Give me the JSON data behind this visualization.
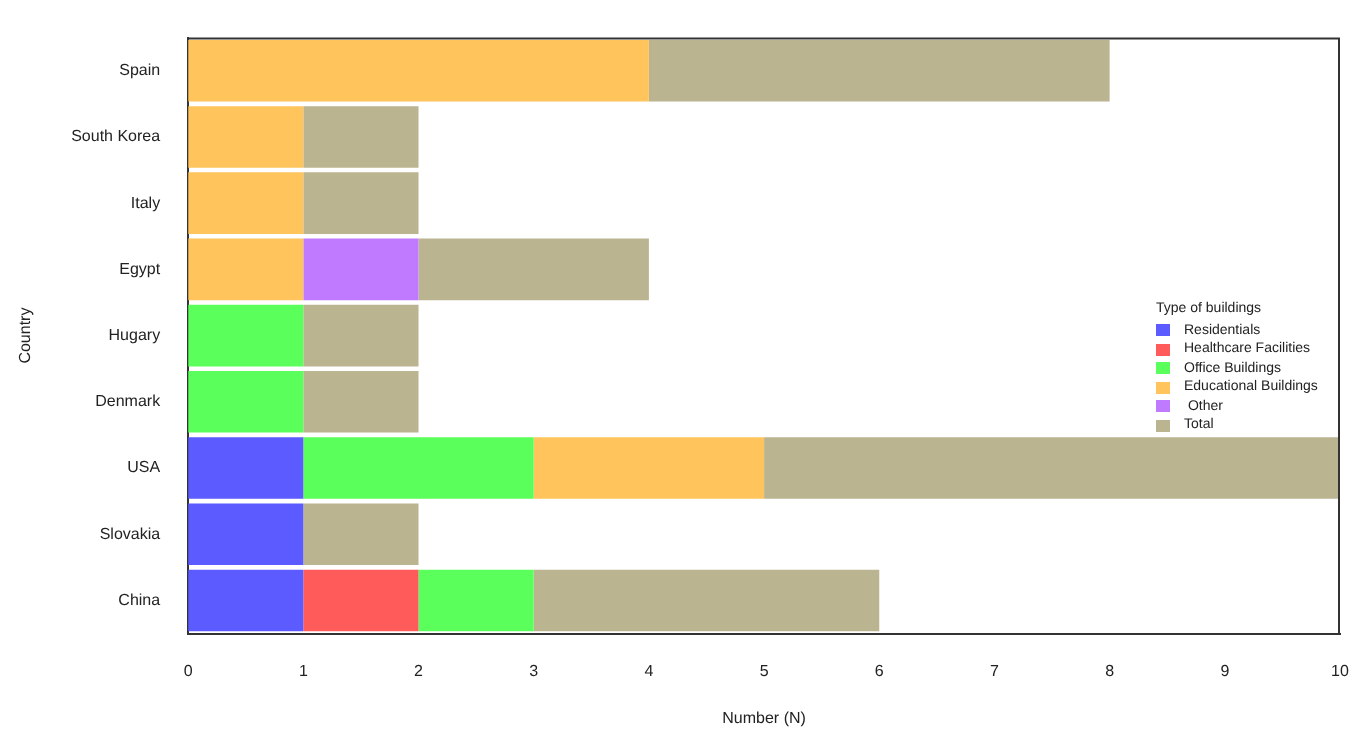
{
  "chart_data": {
    "type": "bar",
    "orientation": "horizontal",
    "stacked": true,
    "xlabel": "Number (N)",
    "ylabel": "Country",
    "legend_title": "Type of buildings",
    "legend": "right",
    "grid": false,
    "categories": [
      "Spain",
      "South Korea",
      "Italy",
      "Egypt",
      "Hugary",
      "Denmark",
      "USA",
      "Slovakia",
      "China"
    ],
    "xlim": [
      0,
      10
    ],
    "xticks": [
      0,
      1,
      2,
      3,
      4,
      5,
      6,
      7,
      8,
      9,
      10
    ],
    "series": [
      {
        "name": "Residentials",
        "color": "#5b5bff",
        "values": [
          null,
          null,
          null,
          null,
          null,
          null,
          1,
          1,
          1
        ]
      },
      {
        "name": "Healthcare Facilities",
        "color": "#ff5b5b",
        "values": [
          null,
          null,
          null,
          null,
          null,
          null,
          null,
          null,
          1
        ]
      },
      {
        "name": "Office Buildings",
        "color": "#5bff5b",
        "values": [
          null,
          null,
          null,
          null,
          1,
          1,
          2,
          null,
          1
        ]
      },
      {
        "name": "Educational Buildings",
        "color": "#ffc45b",
        "values": [
          4,
          1,
          1,
          1,
          null,
          null,
          2,
          null,
          null
        ]
      },
      {
        "name": " Other",
        "color": "#bf7aff",
        "values": [
          null,
          null,
          null,
          1,
          null,
          null,
          null,
          null,
          null
        ]
      },
      {
        "name": "Total",
        "color": "#bbb491",
        "values": [
          4,
          1,
          1,
          2,
          1,
          1,
          5,
          1,
          3
        ]
      }
    ]
  }
}
